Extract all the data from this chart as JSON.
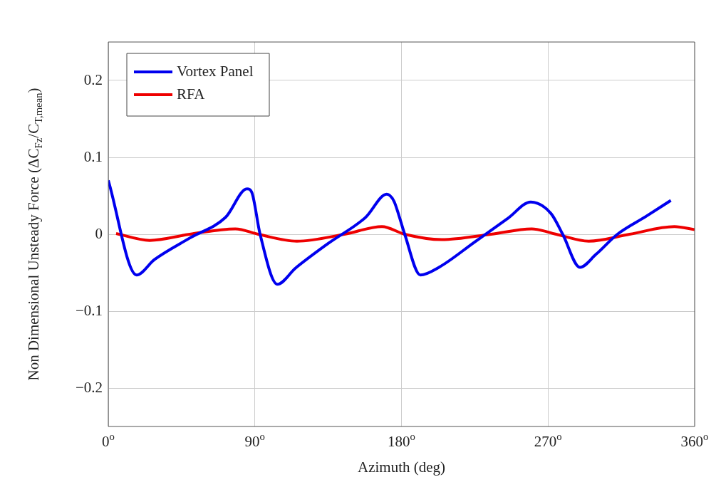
{
  "chart_data": {
    "type": "line",
    "xlabel": "Azimuth (deg)",
    "ylabel": "Non Dimensional Unsteady Force (ΔC$_{Fz}$/C$_{T,mean}$)",
    "xlim": [
      0,
      360
    ],
    "ylim": [
      -0.25,
      0.25
    ],
    "xticks": [
      {
        "value": 0,
        "label": "0$^{o}$"
      },
      {
        "value": 90,
        "label": "90$^{o}$"
      },
      {
        "value": 180,
        "label": "180$^{o}$"
      },
      {
        "value": 270,
        "label": "270$^{o}$"
      },
      {
        "value": 360,
        "label": "360$^{o}$"
      }
    ],
    "yticks": [
      {
        "value": -0.2,
        "label": "−0.2"
      },
      {
        "value": -0.1,
        "label": "−0.1"
      },
      0,
      0.1,
      0.2
    ],
    "grid": true,
    "legend": "top left",
    "marker": "none",
    "line_style": "solid",
    "series": [
      {
        "name": "Vortex Panel",
        "color": "#0000ee",
        "x": [
          0,
          17.4,
          28.3,
          50,
          72,
          85.2,
          88,
          93.2,
          103.8,
          115,
          135,
          158,
          171,
          175.4,
          178.5,
          182,
          191.6,
          203,
          225,
          245.5,
          259.4,
          271.8,
          279,
          289.6,
          299.5,
          312.6,
          330,
          345.4
        ],
        "values": [
          0.07,
          -0.053,
          -0.033,
          -0.005,
          0.022,
          0.059,
          0.055,
          0,
          -0.065,
          -0.044,
          -0.012,
          0.022,
          0.052,
          0.043,
          0.024,
          0,
          -0.053,
          -0.043,
          -0.01,
          0.021,
          0.042,
          0.027,
          0,
          -0.043,
          -0.026,
          0,
          0.023,
          0.044
        ]
      },
      {
        "name": "RFA",
        "color": "#ee0000",
        "x": [
          4.8,
          25.4,
          50,
          78,
          92,
          115.8,
          145,
          168,
          182,
          204.7,
          235,
          260,
          275,
          295,
          320,
          347.6,
          360
        ],
        "values": [
          0.001,
          -0.008,
          0,
          0.007,
          0,
          -0.009,
          0,
          0.01,
          0,
          -0.007,
          0,
          0.007,
          0,
          -0.009,
          0,
          0.01,
          0.006
        ]
      }
    ]
  }
}
